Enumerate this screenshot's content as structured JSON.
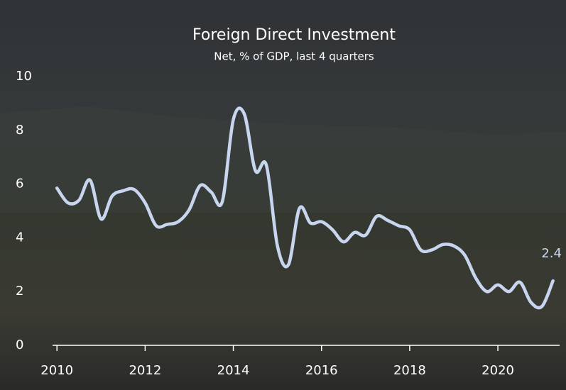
{
  "chart_data": {
    "type": "line",
    "title": "Foreign Direct Investment",
    "subtitle": "Net, % of GDP, last 4 quarters",
    "x": [
      2010,
      2010.25,
      2010.5,
      2010.75,
      2011,
      2011.25,
      2011.5,
      2011.75,
      2012,
      2012.25,
      2012.5,
      2012.75,
      2013,
      2013.25,
      2013.5,
      2013.75,
      2014,
      2014.25,
      2014.5,
      2014.75,
      2015,
      2015.25,
      2015.5,
      2015.75,
      2016,
      2016.25,
      2016.5,
      2016.75,
      2017,
      2017.25,
      2017.5,
      2017.75,
      2018,
      2018.25,
      2018.5,
      2018.75,
      2019,
      2019.25,
      2019.5,
      2019.75,
      2020,
      2020.25,
      2020.5,
      2020.75,
      2021,
      2021.25
    ],
    "series": [
      {
        "color": "#c8d5ee",
        "values": [
          5.85,
          5.3,
          5.4,
          6.15,
          4.7,
          5.55,
          5.75,
          5.8,
          5.3,
          4.45,
          4.5,
          4.6,
          5.05,
          5.95,
          5.7,
          5.35,
          8.4,
          8.6,
          6.5,
          6.7,
          3.7,
          3.0,
          5.1,
          4.55,
          4.6,
          4.3,
          3.85,
          4.2,
          4.1,
          4.8,
          4.65,
          4.45,
          4.3,
          3.55,
          3.55,
          3.75,
          3.7,
          3.35,
          2.5,
          2.0,
          2.25,
          2.0,
          2.35,
          1.6,
          1.45,
          2.4
        ]
      }
    ],
    "xlim": [
      2009.9,
      2021.4
    ],
    "xticks": [
      2010,
      2012,
      2014,
      2016,
      2018,
      2020
    ],
    "ylim": [
      0,
      10
    ],
    "yticks": [
      0,
      2,
      4,
      6,
      8,
      10
    ],
    "grid": false
  }
}
